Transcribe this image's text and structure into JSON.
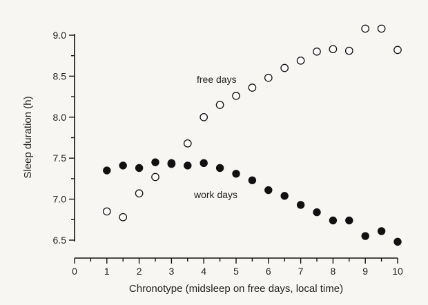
{
  "chart_data": {
    "type": "scatter",
    "xlabel": "Chronotype (midsleep on free days, local time)",
    "ylabel": "Sleep duration (h)",
    "xlim": [
      0,
      10
    ],
    "ylim": [
      6.5,
      9.0
    ],
    "x_ticks": [
      "0",
      "1",
      "2",
      "3",
      "4",
      "5",
      "6",
      "7",
      "8",
      "9",
      "10"
    ],
    "y_ticks": [
      "6.5",
      "7.0",
      "7.5",
      "8.0",
      "8.5",
      "9.0"
    ],
    "grid": false,
    "series": [
      {
        "name": "free days",
        "marker": "open-circle",
        "color": "#111111",
        "points": [
          {
            "x": 1.0,
            "y": 6.85
          },
          {
            "x": 1.5,
            "y": 6.78
          },
          {
            "x": 2.0,
            "y": 7.07
          },
          {
            "x": 2.5,
            "y": 7.27
          },
          {
            "x": 3.0,
            "y": 7.43
          },
          {
            "x": 3.5,
            "y": 7.68
          },
          {
            "x": 4.0,
            "y": 8.0
          },
          {
            "x": 4.5,
            "y": 8.15
          },
          {
            "x": 5.0,
            "y": 8.26
          },
          {
            "x": 5.5,
            "y": 8.36
          },
          {
            "x": 6.0,
            "y": 8.48
          },
          {
            "x": 6.5,
            "y": 8.6
          },
          {
            "x": 7.0,
            "y": 8.69
          },
          {
            "x": 7.5,
            "y": 8.8
          },
          {
            "x": 8.0,
            "y": 8.83
          },
          {
            "x": 8.5,
            "y": 8.81
          },
          {
            "x": 9.0,
            "y": 9.08
          },
          {
            "x": 9.5,
            "y": 9.08
          },
          {
            "x": 10.0,
            "y": 8.82
          }
        ]
      },
      {
        "name": "work days",
        "marker": "filled-circle",
        "color": "#111111",
        "points": [
          {
            "x": 1.0,
            "y": 7.35
          },
          {
            "x": 1.5,
            "y": 7.41
          },
          {
            "x": 2.0,
            "y": 7.38
          },
          {
            "x": 2.5,
            "y": 7.45
          },
          {
            "x": 3.0,
            "y": 7.44
          },
          {
            "x": 3.5,
            "y": 7.41
          },
          {
            "x": 4.0,
            "y": 7.44
          },
          {
            "x": 4.5,
            "y": 7.38
          },
          {
            "x": 5.0,
            "y": 7.31
          },
          {
            "x": 5.5,
            "y": 7.23
          },
          {
            "x": 6.0,
            "y": 7.11
          },
          {
            "x": 6.5,
            "y": 7.04
          },
          {
            "x": 7.0,
            "y": 6.93
          },
          {
            "x": 7.5,
            "y": 6.84
          },
          {
            "x": 8.0,
            "y": 6.74
          },
          {
            "x": 8.5,
            "y": 6.74
          },
          {
            "x": 9.0,
            "y": 6.55
          },
          {
            "x": 9.5,
            "y": 6.61
          },
          {
            "x": 10.0,
            "y": 6.48
          }
        ]
      }
    ]
  }
}
